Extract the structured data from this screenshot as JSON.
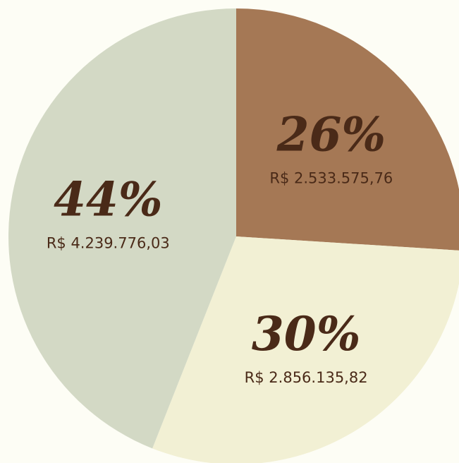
{
  "chart_data": {
    "type": "pie",
    "series": [
      {
        "values": [
          26,
          30,
          44
        ],
        "value_labels": [
          "26%",
          "30%",
          "44%"
        ],
        "amounts": [
          "R$ 2.533.575,76",
          "R$ 2.856.135,82",
          "R$ 4.239.776,03"
        ],
        "colors": [
          "#a57855",
          "#f2f0d4",
          "#d3d9c5"
        ]
      }
    ]
  }
}
